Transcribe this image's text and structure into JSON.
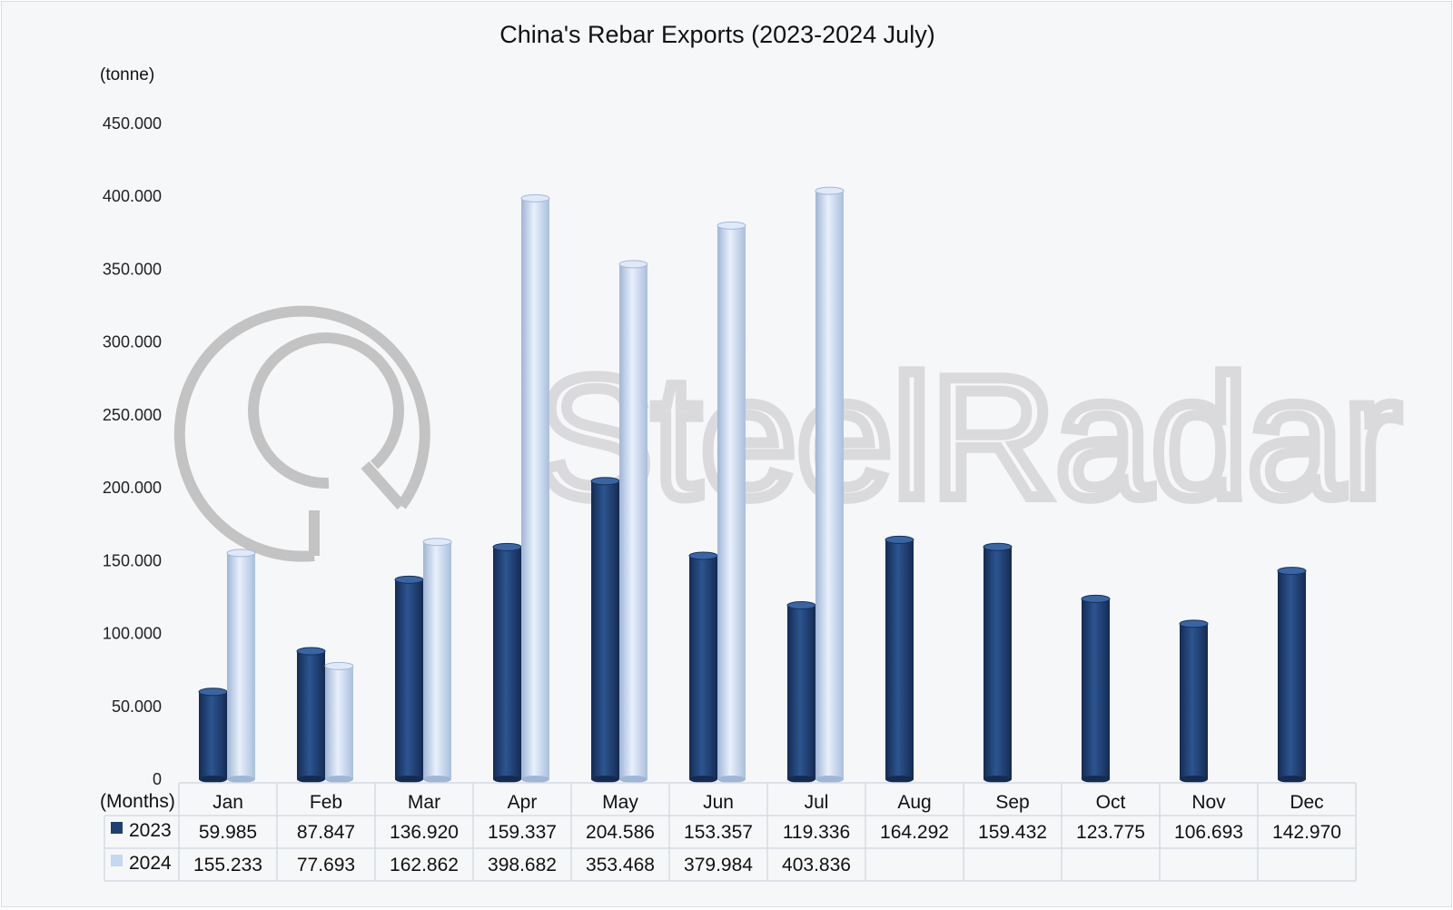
{
  "chart_data": {
    "type": "bar",
    "title": "China's Rebar Exports (2023-2024 July)",
    "ylabel": "(tonne)",
    "xlabel": "(Months)",
    "ylim": [
      0,
      450000
    ],
    "yticks": [
      "0",
      "50.000",
      "100.000",
      "150.000",
      "200.000",
      "250.000",
      "300.000",
      "350.000",
      "400.000",
      "450.000"
    ],
    "categories": [
      "Jan",
      "Feb",
      "Mar",
      "Apr",
      "May",
      "Jun",
      "Jul",
      "Aug",
      "Sep",
      "Oct",
      "Nov",
      "Dec"
    ],
    "series": [
      {
        "name": "2023",
        "color": "#1f3f73",
        "values": [
          59985,
          87847,
          136920,
          159337,
          204586,
          153357,
          119336,
          164292,
          159432,
          123775,
          106693,
          142970
        ],
        "labels": [
          "59.985",
          "87.847",
          "136.920",
          "159.337",
          "204.586",
          "153.357",
          "119.336",
          "164.292",
          "159.432",
          "123.775",
          "106.693",
          "142.970"
        ]
      },
      {
        "name": "2024",
        "color": "#c4d8f2",
        "values": [
          155233,
          77693,
          162862,
          398682,
          353468,
          379984,
          403836,
          null,
          null,
          null,
          null,
          null
        ],
        "labels": [
          "155.233",
          "77.693",
          "162.862",
          "398.682",
          "353.468",
          "379.984",
          "403.836",
          "",
          "",
          "",
          "",
          ""
        ]
      }
    ],
    "grid": false,
    "legend": "data-table"
  },
  "watermark": "SteelRadar"
}
